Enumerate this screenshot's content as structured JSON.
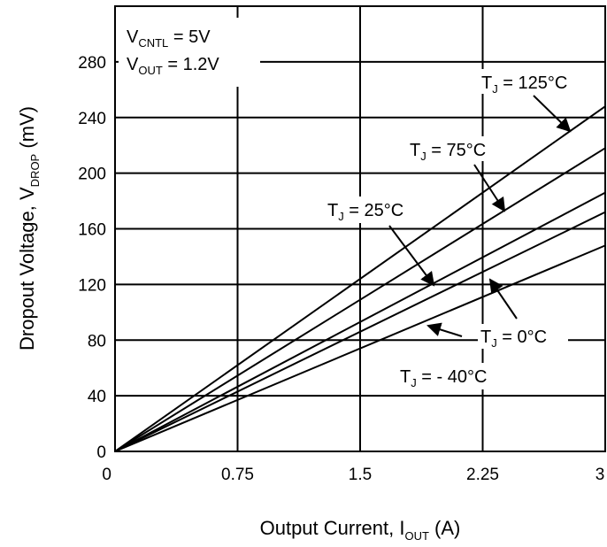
{
  "chart_data": {
    "type": "line",
    "title": "",
    "xlabel": {
      "main": "Output Current, I",
      "sub": "OUT",
      "unit": " (A)"
    },
    "ylabel": {
      "main": "Dropout Voltage, V",
      "sub": "DROP",
      "unit": " (mV)"
    },
    "xlim": [
      0,
      3
    ],
    "ylim": [
      0,
      320
    ],
    "x_ticks": [
      "0",
      "0.75",
      "1.5",
      "2.25",
      "3"
    ],
    "y_ticks": [
      "0",
      "40",
      "80",
      "120",
      "160",
      "200",
      "240",
      "280"
    ],
    "grid": true,
    "conditions": [
      {
        "main": "V",
        "sub": "CNTL",
        "rest": " = 5V"
      },
      {
        "main": "V",
        "sub": "OUT",
        "rest": " = 1.2V"
      }
    ],
    "series": [
      {
        "name": "T_J = 125°C",
        "label_main": "T",
        "label_sub": "J",
        "label_rest": " = 125°C",
        "x": [
          0,
          3
        ],
        "y": [
          0,
          248
        ]
      },
      {
        "name": "T_J = 75°C",
        "label_main": "T",
        "label_sub": "J",
        "label_rest": " = 75°C",
        "x": [
          0,
          3
        ],
        "y": [
          0,
          218
        ]
      },
      {
        "name": "T_J = 25°C",
        "label_main": "T",
        "label_sub": "J",
        "label_rest": " = 25°C",
        "x": [
          0,
          3
        ],
        "y": [
          0,
          186
        ]
      },
      {
        "name": "T_J = 0°C",
        "label_main": "T",
        "label_sub": "J",
        "label_rest": " = 0°C",
        "x": [
          0,
          3
        ],
        "y": [
          0,
          172
        ]
      },
      {
        "name": "T_J = - 40°C",
        "label_main": "T",
        "label_sub": "J",
        "label_rest": " = - 40°C",
        "x": [
          0,
          3
        ],
        "y": [
          0,
          148
        ]
      }
    ]
  }
}
